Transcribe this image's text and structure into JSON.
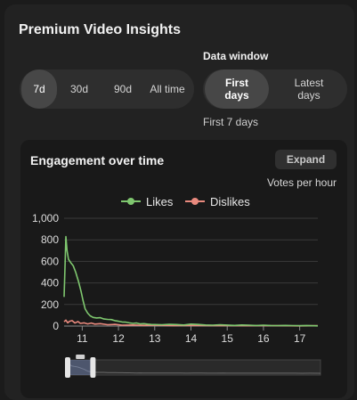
{
  "header": {
    "title": "Premium Video Insights"
  },
  "range": {
    "options": [
      {
        "label": "7d",
        "active": true
      },
      {
        "label": "30d",
        "active": false
      },
      {
        "label": "90d",
        "active": false
      },
      {
        "label": "All time",
        "active": false
      }
    ]
  },
  "data_window": {
    "label": "Data window",
    "options": [
      {
        "label": "First days",
        "active": true
      },
      {
        "label": "Latest days",
        "active": false
      }
    ],
    "caption": "First 7 days"
  },
  "card": {
    "title": "Engagement over time",
    "expand_label": "Expand",
    "unit_label": "Votes per hour"
  },
  "chart_data": {
    "type": "line",
    "legend_position": "top-center",
    "grid": true,
    "ylim": [
      0,
      1000
    ],
    "yticks": [
      "0",
      "200",
      "400",
      "600",
      "800",
      "1,000"
    ],
    "xlim": [
      10.5,
      17.5
    ],
    "xticks": [
      "11",
      "12",
      "13",
      "14",
      "15",
      "16",
      "17"
    ],
    "series": [
      {
        "name": "Likes",
        "color": "#7fc76f",
        "points": [
          [
            10.5,
            270
          ],
          [
            10.53,
            600
          ],
          [
            10.55,
            830
          ],
          [
            10.58,
            700
          ],
          [
            10.62,
            620
          ],
          [
            10.68,
            590
          ],
          [
            10.75,
            560
          ],
          [
            10.82,
            500
          ],
          [
            10.9,
            410
          ],
          [
            10.97,
            320
          ],
          [
            11.02,
            240
          ],
          [
            11.08,
            160
          ],
          [
            11.15,
            120
          ],
          [
            11.22,
            95
          ],
          [
            11.3,
            80
          ],
          [
            11.4,
            75
          ],
          [
            11.5,
            78
          ],
          [
            11.6,
            65
          ],
          [
            11.7,
            62
          ],
          [
            11.8,
            60
          ],
          [
            11.9,
            50
          ],
          [
            12.0,
            45
          ],
          [
            12.1,
            38
          ],
          [
            12.2,
            36
          ],
          [
            12.3,
            30
          ],
          [
            12.4,
            25
          ],
          [
            12.5,
            28
          ],
          [
            12.6,
            20
          ],
          [
            12.7,
            22
          ],
          [
            12.8,
            18
          ],
          [
            12.9,
            15
          ],
          [
            13.0,
            14
          ],
          [
            13.2,
            12
          ],
          [
            13.4,
            16
          ],
          [
            13.6,
            14
          ],
          [
            13.8,
            10
          ],
          [
            14.0,
            18
          ],
          [
            14.2,
            15
          ],
          [
            14.4,
            10
          ],
          [
            14.6,
            8
          ],
          [
            14.8,
            12
          ],
          [
            15.0,
            9
          ],
          [
            15.2,
            6
          ],
          [
            15.4,
            10
          ],
          [
            15.6,
            8
          ],
          [
            15.8,
            5
          ],
          [
            16.0,
            8
          ],
          [
            16.2,
            5
          ],
          [
            16.4,
            4
          ],
          [
            16.6,
            6
          ],
          [
            16.8,
            4
          ],
          [
            17.0,
            3
          ],
          [
            17.2,
            5
          ],
          [
            17.5,
            2
          ]
        ]
      },
      {
        "name": "Dislikes",
        "color": "#e98a7e",
        "points": [
          [
            10.5,
            40
          ],
          [
            10.55,
            55
          ],
          [
            10.6,
            30
          ],
          [
            10.65,
            45
          ],
          [
            10.72,
            50
          ],
          [
            10.8,
            28
          ],
          [
            10.88,
            42
          ],
          [
            10.95,
            25
          ],
          [
            11.05,
            30
          ],
          [
            11.15,
            20
          ],
          [
            11.25,
            28
          ],
          [
            11.35,
            18
          ],
          [
            11.5,
            22
          ],
          [
            11.7,
            12
          ],
          [
            11.9,
            16
          ],
          [
            12.1,
            8
          ],
          [
            12.4,
            10
          ],
          [
            12.7,
            6
          ],
          [
            13.0,
            8
          ],
          [
            13.5,
            5
          ],
          [
            14.0,
            6
          ],
          [
            14.5,
            4
          ],
          [
            15.0,
            5
          ],
          [
            15.5,
            3
          ],
          [
            16.0,
            4
          ],
          [
            16.5,
            3
          ],
          [
            17.0,
            2
          ],
          [
            17.5,
            3
          ]
        ]
      }
    ],
    "navigator": {
      "selected_from": 10.5,
      "selected_to": 11.2,
      "min": 10.5,
      "max": 17.5
    }
  }
}
